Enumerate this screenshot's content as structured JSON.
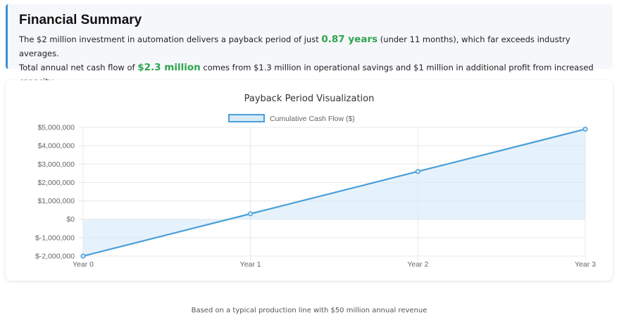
{
  "summary": {
    "title": "Financial Summary",
    "line1_pre": "The $2 million investment in automation delivers a payback period of just ",
    "line1_hl": "0.87 years",
    "line1_post": " (under 11 months), which far exceeds industry averages.",
    "line2_pre": "Total annual net cash flow of ",
    "line2_hl": "$2.3 million",
    "line2_post": " comes from $1.3 million in operational savings and $1 million in additional profit from increased capacity."
  },
  "chart_data": {
    "type": "line",
    "title": "Payback Period Visualization",
    "categories": [
      "Year 0",
      "Year 1",
      "Year 2",
      "Year 3"
    ],
    "series": [
      {
        "name": "Cumulative Cash Flow ($)",
        "values": [
          -2000000,
          300000,
          2600000,
          4900000
        ]
      }
    ],
    "ylim": [
      -2000000,
      5000000
    ],
    "yticks": [
      -2000000,
      -1000000,
      0,
      1000000,
      2000000,
      3000000,
      4000000,
      5000000
    ],
    "ytick_labels": [
      "$-2,000,000",
      "$-1,000,000",
      "$0",
      "$1,000,000",
      "$2,000,000",
      "$3,000,000",
      "$4,000,000",
      "$5,000,000"
    ],
    "grid": true,
    "legend": "top",
    "fill": "origin",
    "colors": {
      "line": "#4a9fd8",
      "fill": "#d6eaf8"
    }
  },
  "footnote": "Based on a typical production line with $50 million annual revenue"
}
